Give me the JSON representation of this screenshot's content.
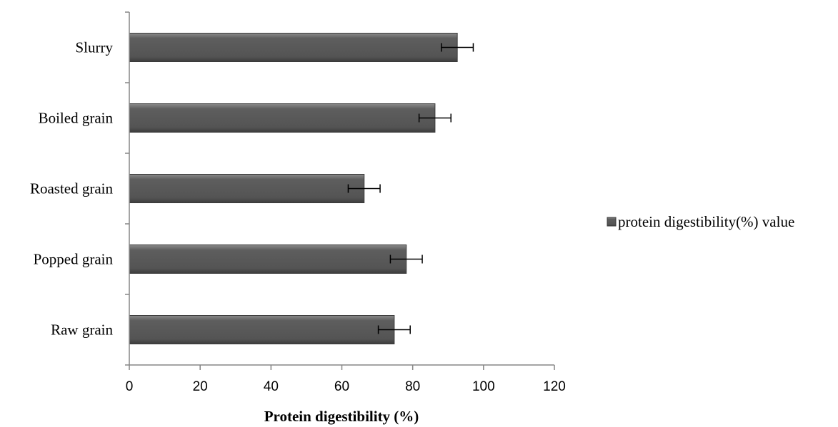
{
  "chart_data": {
    "type": "bar",
    "orientation": "horizontal",
    "categories": [
      "Raw grain",
      "Popped grain",
      "Roasted grain",
      "Boiled grain",
      "Slurry"
    ],
    "series": [
      {
        "name": "protein digestibility(%) value",
        "values": [
          74.8,
          78.2,
          66.3,
          86.3,
          92.6
        ],
        "error": [
          4.5,
          4.5,
          4.5,
          4.5,
          4.5
        ]
      }
    ],
    "xlabel": "Protein digestibility (%)",
    "ylabel": "",
    "xlim": [
      0,
      120
    ],
    "xticks": [
      "0",
      "20",
      "40",
      "60",
      "80",
      "100",
      "120"
    ],
    "grid": false,
    "legend_position": "right",
    "colors": {
      "bar": "#5a5a5a",
      "bar_edge": "#3a3a3a",
      "axis": "#868686"
    }
  }
}
